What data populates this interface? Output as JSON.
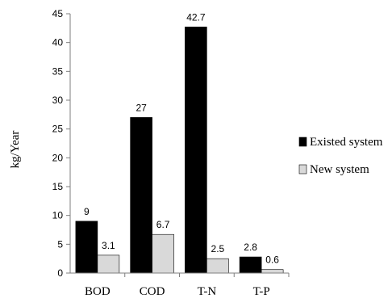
{
  "chart_data": {
    "type": "bar",
    "title": "",
    "xlabel": "",
    "ylabel": "kg/Year",
    "ylim": [
      0,
      45
    ],
    "y_ticks": [
      0,
      5,
      10,
      15,
      20,
      25,
      30,
      35,
      40,
      45
    ],
    "categories": [
      "BOD",
      "COD",
      "T-N",
      "T-P"
    ],
    "series": [
      {
        "name": "Existed system",
        "values": [
          9,
          27,
          42.7,
          2.8
        ],
        "value_labels": [
          "9",
          "27",
          "42.7",
          "2.8"
        ],
        "color": "#000000"
      },
      {
        "name": "New system",
        "values": [
          3.1,
          6.7,
          2.5,
          0.6
        ],
        "value_labels": [
          "3.1",
          "6.7",
          "2.5",
          "0.6"
        ],
        "color": "#d9d9d9"
      }
    ],
    "grid": false,
    "legend_position": "right"
  }
}
